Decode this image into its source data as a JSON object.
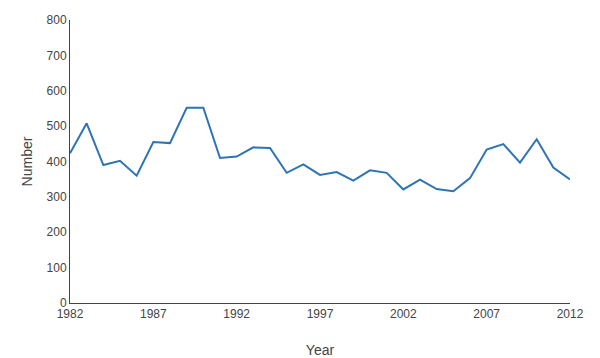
{
  "chart_data": {
    "type": "line",
    "xlabel": "Year",
    "ylabel": "Number",
    "x": [
      1982,
      1983,
      1984,
      1985,
      1986,
      1987,
      1988,
      1989,
      1990,
      1991,
      1992,
      1993,
      1994,
      1995,
      1996,
      1997,
      1998,
      1999,
      2000,
      2001,
      2002,
      2003,
      2004,
      2005,
      2006,
      2007,
      2008,
      2009,
      2010,
      2011,
      2012
    ],
    "values": [
      423,
      508,
      390,
      402,
      360,
      455,
      452,
      552,
      552,
      410,
      414,
      440,
      438,
      368,
      392,
      362,
      370,
      346,
      375,
      368,
      321,
      349,
      322,
      316,
      353,
      434,
      449,
      397,
      463,
      383,
      349
    ],
    "color": "#2E74B5",
    "xlim": [
      1982,
      2012
    ],
    "ylim": [
      0,
      800
    ],
    "xticks": [
      1982,
      1987,
      1992,
      1997,
      2002,
      2007,
      2012
    ],
    "yticks": [
      0,
      100,
      200,
      300,
      400,
      500,
      600,
      700,
      800
    ],
    "grid": false
  }
}
